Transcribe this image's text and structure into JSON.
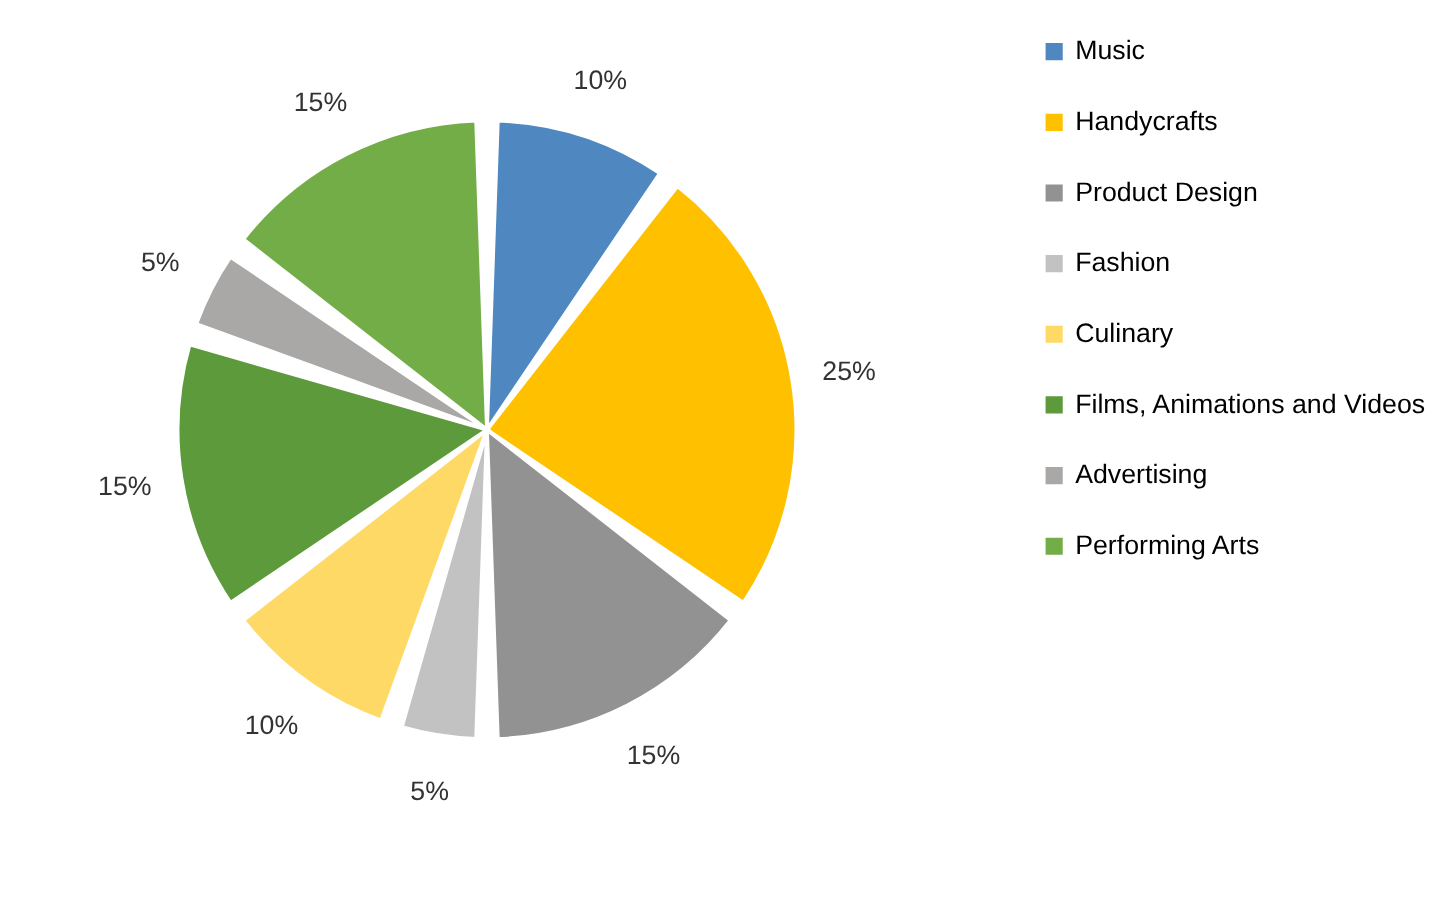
{
  "chart_data": {
    "type": "pie",
    "categories": [
      "Music",
      "Handycrafts",
      "Product Design",
      "Fashion",
      "Culinary",
      "Films, Animations and Videos",
      "Advertising",
      "Performing Arts"
    ],
    "values": [
      10,
      25,
      15,
      5,
      10,
      15,
      5,
      15
    ],
    "colors": [
      "#4f88c0",
      "#ffc000",
      "#929292",
      "#c2c2c2",
      "#ffd966",
      "#5c9a3b",
      "#aaa7a7",
      "#72ad48"
    ],
    "value_labels": [
      "10%",
      "25%",
      "15%",
      "5%",
      "10%",
      "15%",
      "5%",
      "15%"
    ],
    "legend": "right"
  }
}
